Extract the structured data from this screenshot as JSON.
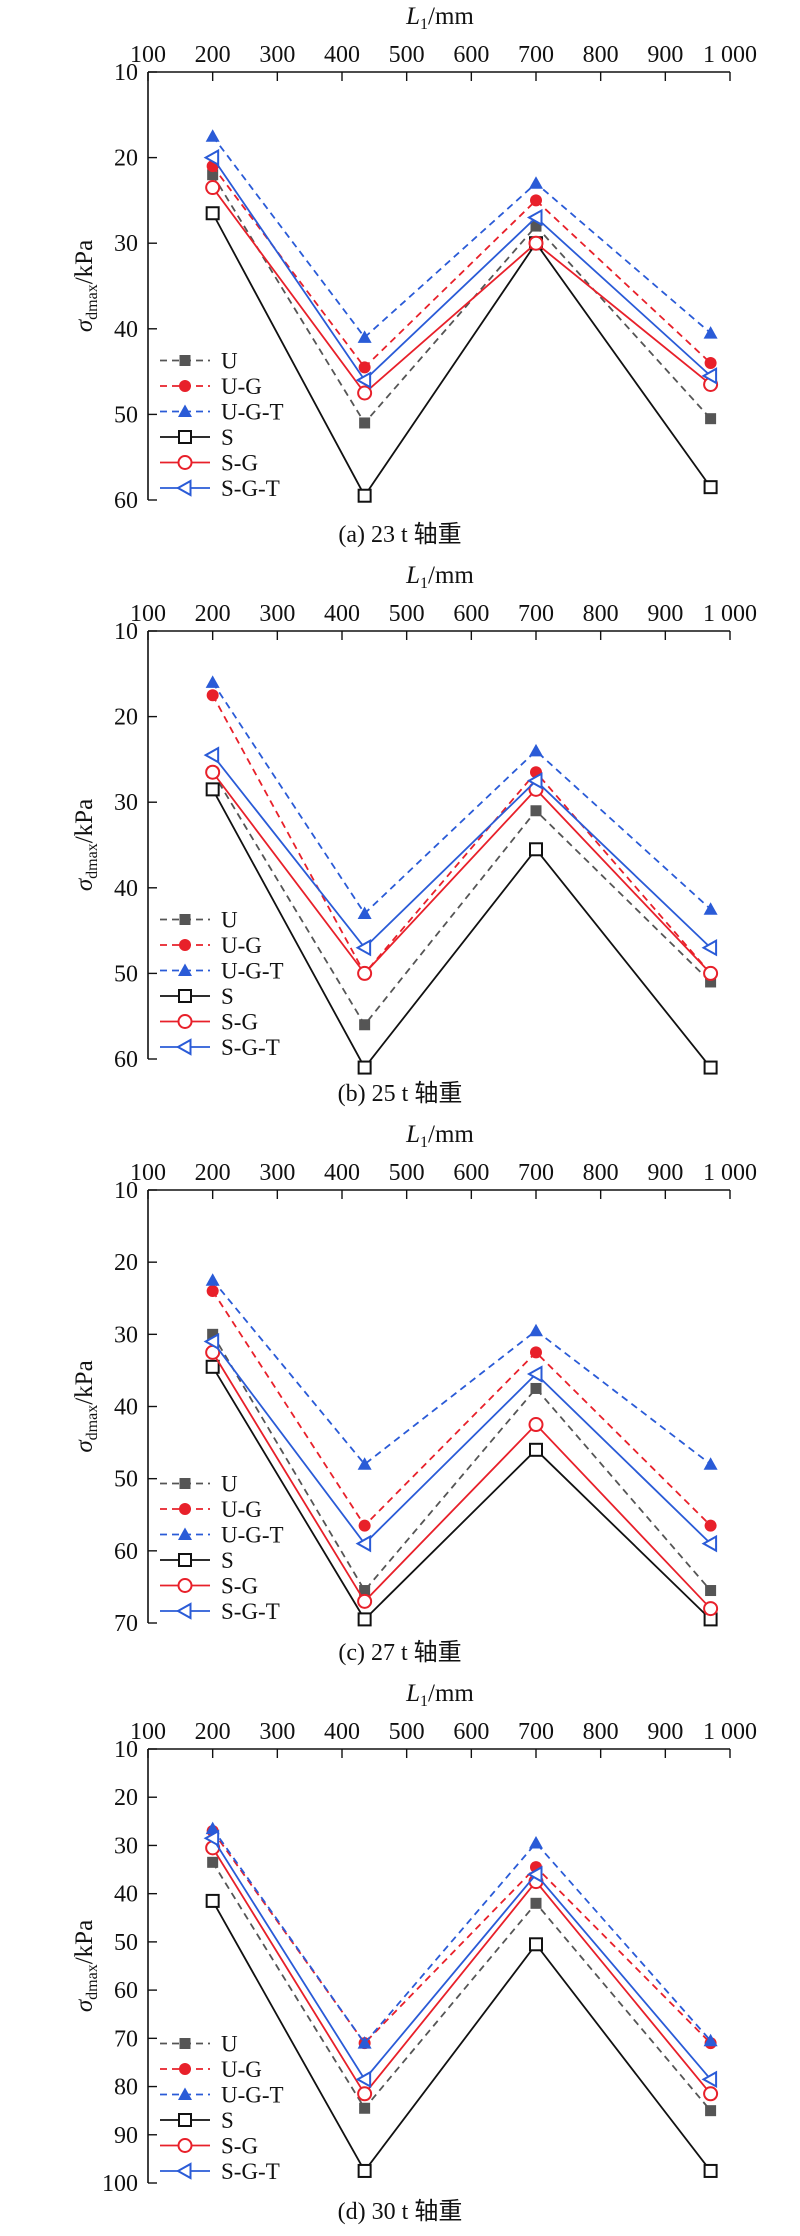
{
  "figure": {
    "series_styles": [
      {
        "name": "U",
        "color": "#555555",
        "dash": true,
        "marker": "square-filled"
      },
      {
        "name": "U-G",
        "color": "#e8202a",
        "dash": true,
        "marker": "circle-filled"
      },
      {
        "name": "U-G-T",
        "color": "#2a5bd7",
        "dash": true,
        "marker": "triangle-up-filled"
      },
      {
        "name": "S",
        "color": "#111111",
        "dash": false,
        "marker": "square-open"
      },
      {
        "name": "S-G",
        "color": "#e8202a",
        "dash": false,
        "marker": "circle-open"
      },
      {
        "name": "S-G-T",
        "color": "#2a5bd7",
        "dash": false,
        "marker": "triangle-left-open"
      }
    ]
  },
  "chart_data": [
    {
      "type": "line",
      "caption": "(a) 23 t 轴重",
      "xlabel_main": "L",
      "xlabel_sub": "1",
      "xlabel_unit": "/mm",
      "ylabel_main": "σ",
      "ylabel_sub": "dmax",
      "ylabel_unit": "/kPa",
      "x_position": "top",
      "y_reversed": true,
      "xlim": [
        100,
        1000
      ],
      "ylim": [
        10,
        60
      ],
      "xticks": [
        100,
        200,
        300,
        400,
        500,
        600,
        700,
        800,
        900,
        1000
      ],
      "xtick_labels": [
        "100",
        "200",
        "300",
        "400",
        "500",
        "600",
        "700",
        "800",
        "900",
        "1 000"
      ],
      "yticks": [
        10,
        20,
        30,
        40,
        50,
        60
      ],
      "ytick_labels": [
        "10",
        "20",
        "30",
        "40",
        "50",
        "60"
      ],
      "x": [
        200,
        435,
        700,
        970
      ],
      "legend_position": "bottom-left",
      "series": [
        {
          "name": "U",
          "values": [
            22,
            51,
            28,
            50.5
          ]
        },
        {
          "name": "U-G",
          "values": [
            21,
            44.5,
            25,
            44
          ]
        },
        {
          "name": "U-G-T",
          "values": [
            17.5,
            41,
            23,
            40.5
          ]
        },
        {
          "name": "S",
          "values": [
            26.5,
            59.5,
            30,
            58.5
          ]
        },
        {
          "name": "S-G",
          "values": [
            23.5,
            47.5,
            30,
            46.5
          ]
        },
        {
          "name": "S-G-T",
          "values": [
            20,
            46,
            27,
            45.5
          ]
        }
      ]
    },
    {
      "type": "line",
      "caption": "(b) 25 t 轴重",
      "xlabel_main": "L",
      "xlabel_sub": "1",
      "xlabel_unit": "/mm",
      "ylabel_main": "σ",
      "ylabel_sub": "dmax",
      "ylabel_unit": "/kPa",
      "x_position": "top",
      "y_reversed": true,
      "xlim": [
        100,
        1000
      ],
      "ylim": [
        10,
        60
      ],
      "xticks": [
        100,
        200,
        300,
        400,
        500,
        600,
        700,
        800,
        900,
        1000
      ],
      "xtick_labels": [
        "100",
        "200",
        "300",
        "400",
        "500",
        "600",
        "700",
        "800",
        "900",
        "1 000"
      ],
      "yticks": [
        10,
        20,
        30,
        40,
        50,
        60
      ],
      "ytick_labels": [
        "10",
        "20",
        "30",
        "40",
        "50",
        "60"
      ],
      "x": [
        200,
        435,
        700,
        970
      ],
      "legend_position": "bottom-left",
      "series": [
        {
          "name": "U",
          "values": [
            26.5,
            56,
            31,
            51
          ]
        },
        {
          "name": "U-G",
          "values": [
            17.5,
            50,
            26.5,
            50
          ]
        },
        {
          "name": "U-G-T",
          "values": [
            16,
            43,
            24,
            42.5
          ]
        },
        {
          "name": "S",
          "values": [
            28.5,
            61,
            35.5,
            61
          ]
        },
        {
          "name": "S-G",
          "values": [
            26.5,
            50,
            28.5,
            50
          ]
        },
        {
          "name": "S-G-T",
          "values": [
            24.5,
            47,
            27.5,
            47
          ]
        }
      ]
    },
    {
      "type": "line",
      "caption": "(c) 27 t 轴重",
      "xlabel_main": "L",
      "xlabel_sub": "1",
      "xlabel_unit": "/mm",
      "ylabel_main": "σ",
      "ylabel_sub": "dmax",
      "ylabel_unit": "/kPa",
      "x_position": "top",
      "y_reversed": true,
      "xlim": [
        100,
        1000
      ],
      "ylim": [
        10,
        70
      ],
      "xticks": [
        100,
        200,
        300,
        400,
        500,
        600,
        700,
        800,
        900,
        1000
      ],
      "xtick_labels": [
        "100",
        "200",
        "300",
        "400",
        "500",
        "600",
        "700",
        "800",
        "900",
        "1 000"
      ],
      "yticks": [
        10,
        20,
        30,
        40,
        50,
        60,
        70
      ],
      "ytick_labels": [
        "10",
        "20",
        "30",
        "40",
        "50",
        "60",
        "70"
      ],
      "x": [
        200,
        435,
        700,
        970
      ],
      "legend_position": "bottom-left",
      "series": [
        {
          "name": "U",
          "values": [
            30,
            65.5,
            37.5,
            65.5
          ]
        },
        {
          "name": "U-G",
          "values": [
            24,
            56.5,
            32.5,
            56.5
          ]
        },
        {
          "name": "U-G-T",
          "values": [
            22.5,
            48,
            29.5,
            48
          ]
        },
        {
          "name": "S",
          "values": [
            34.5,
            69.5,
            46,
            69.5
          ]
        },
        {
          "name": "S-G",
          "values": [
            32.5,
            67,
            42.5,
            68
          ]
        },
        {
          "name": "S-G-T",
          "values": [
            31,
            59,
            35.5,
            59
          ]
        }
      ]
    },
    {
      "type": "line",
      "caption": "(d) 30 t 轴重",
      "xlabel_main": "L",
      "xlabel_sub": "1",
      "xlabel_unit": "/mm",
      "ylabel_main": "σ",
      "ylabel_sub": "dmax",
      "ylabel_unit": "/kPa",
      "x_position": "top",
      "y_reversed": true,
      "xlim": [
        100,
        1000
      ],
      "ylim": [
        10,
        100
      ],
      "xticks": [
        100,
        200,
        300,
        400,
        500,
        600,
        700,
        800,
        900,
        1000
      ],
      "xtick_labels": [
        "100",
        "200",
        "300",
        "400",
        "500",
        "600",
        "700",
        "800",
        "900",
        "1 000"
      ],
      "yticks": [
        10,
        20,
        30,
        40,
        50,
        60,
        70,
        80,
        90,
        100
      ],
      "ytick_labels": [
        "10",
        "20",
        "30",
        "40",
        "50",
        "60",
        "70",
        "80",
        "90",
        "100"
      ],
      "x": [
        200,
        435,
        700,
        970
      ],
      "legend_position": "bottom-left",
      "series": [
        {
          "name": "U",
          "values": [
            33.5,
            84.5,
            42,
            85
          ]
        },
        {
          "name": "U-G",
          "values": [
            27,
            71,
            34.5,
            71
          ]
        },
        {
          "name": "U-G-T",
          "values": [
            26.5,
            71,
            29.5,
            70.5
          ]
        },
        {
          "name": "S",
          "values": [
            41.5,
            97.5,
            50.5,
            97.5
          ]
        },
        {
          "name": "S-G",
          "values": [
            30.5,
            81.5,
            37.5,
            81.5
          ]
        },
        {
          "name": "S-G-T",
          "values": [
            28.5,
            78.5,
            36,
            78.5
          ]
        }
      ]
    }
  ]
}
